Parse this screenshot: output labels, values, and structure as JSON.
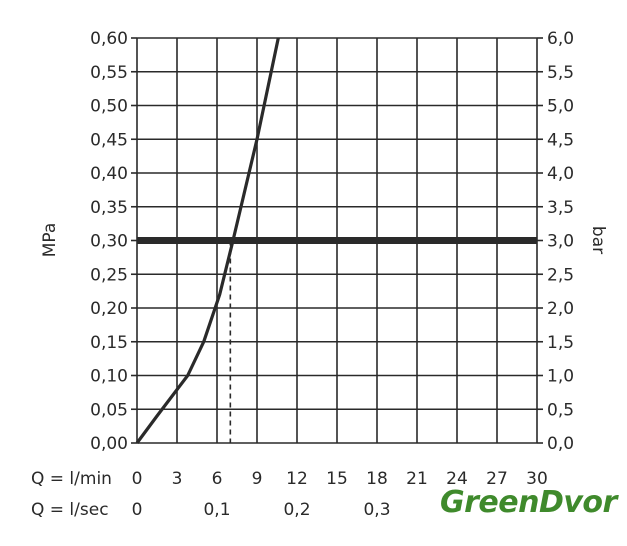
{
  "chart_data": {
    "type": "line",
    "title": "",
    "ylabel": "MPa",
    "ylabel_right": "bar",
    "xlim": [
      0,
      30
    ],
    "ylim": [
      0,
      0.6
    ],
    "ylim_right": [
      0,
      6.0
    ],
    "grid": true,
    "x_ticks": [
      0,
      3,
      6,
      9,
      12,
      15,
      18,
      21,
      24,
      27,
      30
    ],
    "x_tick_labels": [
      "0",
      "3",
      "6",
      "9",
      "12",
      "15",
      "18",
      "21",
      "24",
      "27",
      "30"
    ],
    "x_axis_label": "Q = l/min",
    "x_secondary_label": "Q = l/sec",
    "x_secondary_ticks": [
      {
        "value": 0,
        "label": "0"
      },
      {
        "value": 6,
        "label": "0,1"
      },
      {
        "value": 12,
        "label": "0,2"
      },
      {
        "value": 18,
        "label": "0,3"
      }
    ],
    "y_ticks": [
      0,
      0.05,
      0.1,
      0.15,
      0.2,
      0.25,
      0.3,
      0.35,
      0.4,
      0.45,
      0.5,
      0.55,
      0.6
    ],
    "y_tick_labels": [
      "0,00",
      "0,05",
      "0,10",
      "0,15",
      "0,20",
      "0,25",
      "0,30",
      "0,35",
      "0,40",
      "0,45",
      "0,50",
      "0,55",
      "0,60"
    ],
    "y_right_tick_labels": [
      "0,0",
      "0,5",
      "1,0",
      "1,5",
      "2,0",
      "2,5",
      "3,0",
      "3,5",
      "4,0",
      "4,5",
      "5,0",
      "5,5",
      "6,0"
    ],
    "series": [
      {
        "x": [
          0,
          1.5,
          3.8,
          5.0,
          6.2,
          7.2,
          9.0,
          10.6
        ],
        "y": [
          0,
          0.04,
          0.1,
          0.15,
          0.22,
          0.3,
          0.45,
          0.6
        ]
      }
    ],
    "reference_line": {
      "y": 0.3
    },
    "marker": {
      "x": 7.0,
      "y": 0.3
    }
  },
  "watermark": "GreenDvor"
}
